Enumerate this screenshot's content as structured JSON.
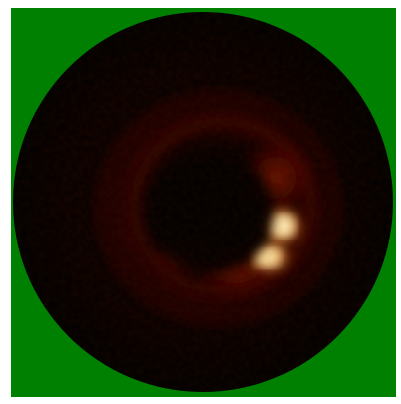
{
  "image": {
    "description_colors": {
      "outer_background": "#ffffff",
      "field_background": "#008000",
      "disk_base": "#050000",
      "glow_red": "#6b0a00",
      "glow_orange": "#d86a10",
      "glow_yellow": "#ffe89a",
      "glow_white": "#fff9e0"
    }
  }
}
